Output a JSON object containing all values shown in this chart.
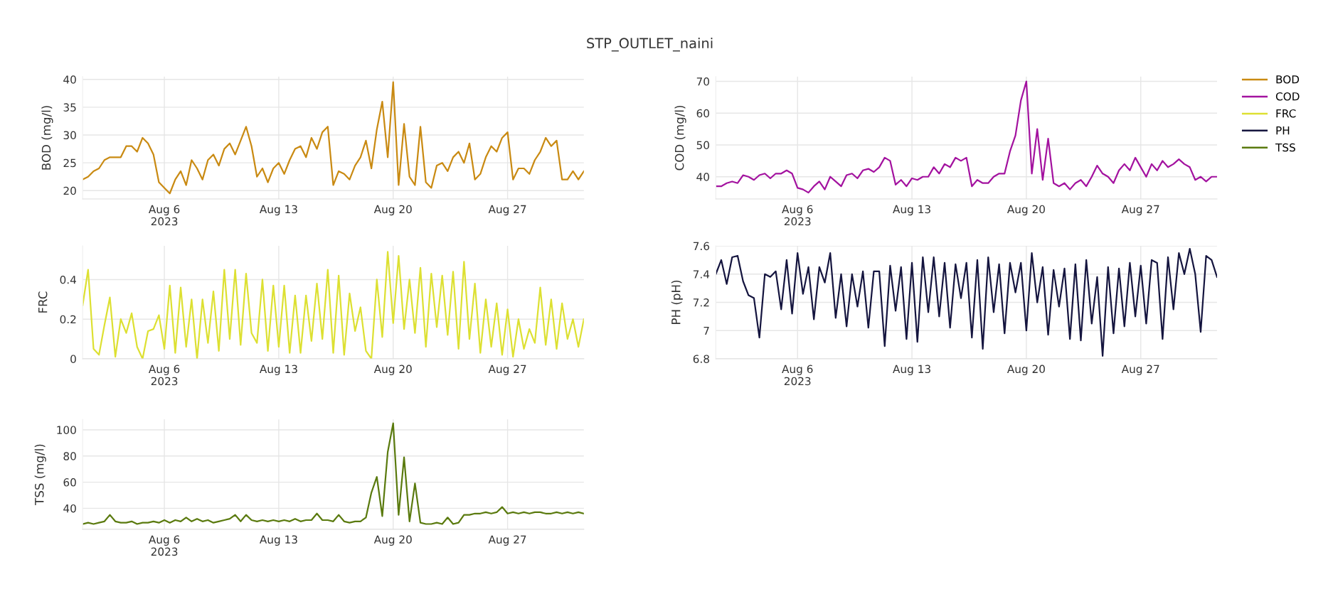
{
  "chart_data": [
    {
      "type": "other",
      "title": "STP_OUTLET_naini"
    },
    {
      "type": "line",
      "ylabel": "BOD (mg/l)",
      "grid": true,
      "legend": "right",
      "x": [
        "2023-08-01T00:00",
        "2023-08-01T08:00",
        "2023-08-01T16:00",
        "2023-08-02T00:00",
        "2023-08-02T08:00",
        "2023-08-02T16:00",
        "2023-08-03T00:00",
        "2023-08-03T08:00",
        "2023-08-03T16:00",
        "2023-08-04T00:00",
        "2023-08-04T08:00",
        "2023-08-04T16:00",
        "2023-08-05T00:00",
        "2023-08-05T08:00",
        "2023-08-05T16:00",
        "2023-08-06T00:00",
        "2023-08-06T08:00",
        "2023-08-06T16:00",
        "2023-08-07T00:00",
        "2023-08-07T08:00",
        "2023-08-07T16:00",
        "2023-08-08T00:00",
        "2023-08-08T08:00",
        "2023-08-08T16:00",
        "2023-08-09T00:00",
        "2023-08-09T08:00",
        "2023-08-09T16:00",
        "2023-08-10T00:00",
        "2023-08-10T08:00",
        "2023-08-10T16:00",
        "2023-08-11T00:00",
        "2023-08-11T08:00",
        "2023-08-11T16:00",
        "2023-08-12T00:00",
        "2023-08-12T08:00",
        "2023-08-12T16:00",
        "2023-08-13T00:00",
        "2023-08-13T08:00",
        "2023-08-13T16:00",
        "2023-08-14T00:00",
        "2023-08-14T08:00",
        "2023-08-14T16:00",
        "2023-08-15T00:00",
        "2023-08-15T08:00",
        "2023-08-15T16:00",
        "2023-08-16T00:00",
        "2023-08-16T08:00",
        "2023-08-16T16:00",
        "2023-08-17T00:00",
        "2023-08-17T08:00",
        "2023-08-17T16:00",
        "2023-08-18T00:00",
        "2023-08-18T08:00",
        "2023-08-18T16:00",
        "2023-08-19T00:00",
        "2023-08-19T08:00",
        "2023-08-19T16:00",
        "2023-08-20T00:00",
        "2023-08-20T08:00",
        "2023-08-20T16:00",
        "2023-08-21T00:00",
        "2023-08-21T08:00",
        "2023-08-21T16:00",
        "2023-08-22T00:00",
        "2023-08-22T08:00",
        "2023-08-22T16:00",
        "2023-08-23T00:00",
        "2023-08-23T08:00",
        "2023-08-23T16:00",
        "2023-08-24T00:00",
        "2023-08-24T08:00",
        "2023-08-24T16:00",
        "2023-08-25T00:00",
        "2023-08-25T08:00",
        "2023-08-25T16:00",
        "2023-08-26T00:00",
        "2023-08-26T08:00",
        "2023-08-26T16:00",
        "2023-08-27T00:00",
        "2023-08-27T08:00",
        "2023-08-27T16:00",
        "2023-08-28T00:00",
        "2023-08-28T08:00",
        "2023-08-28T16:00",
        "2023-08-29T00:00",
        "2023-08-29T08:00",
        "2023-08-29T16:00",
        "2023-08-30T00:00",
        "2023-08-30T08:00",
        "2023-08-30T16:00",
        "2023-08-31T00:00",
        "2023-08-31T08:00",
        "2023-08-31T16:00"
      ],
      "xlim": [
        "2023-08-01T00:00",
        "2023-08-31T16:00"
      ],
      "xticks": [
        {
          "value": "2023-08-06",
          "label": "Aug 6\n2023"
        },
        {
          "value": "2023-08-13",
          "label": "Aug 13"
        },
        {
          "value": "2023-08-20",
          "label": "Aug 20"
        },
        {
          "value": "2023-08-27",
          "label": "Aug 27"
        }
      ],
      "ylim": [
        18.5,
        40.5
      ],
      "yticks": [
        20,
        25,
        30,
        35,
        40
      ],
      "series": [
        {
          "name": "BOD",
          "color": "#c98a12",
          "values": [
            22,
            22.5,
            23.5,
            24,
            25.5,
            26,
            26,
            26,
            28,
            28,
            27,
            29.5,
            28.5,
            26.5,
            21.5,
            20.5,
            19.5,
            22,
            23.5,
            21,
            25.5,
            24,
            22,
            25.5,
            26.5,
            24.5,
            27.5,
            28.5,
            26.5,
            29,
            31.5,
            28,
            22.5,
            24,
            21.5,
            24,
            25,
            23,
            25.5,
            27.5,
            28,
            26,
            29.5,
            27.5,
            30.5,
            31.5,
            21,
            23.5,
            23,
            22,
            24.5,
            26,
            29,
            24,
            31,
            36,
            26,
            39.5,
            21,
            32,
            22.5,
            21,
            31.5,
            21.5,
            20.5,
            24.5,
            25,
            23.5,
            26,
            27,
            25,
            28.5,
            22,
            23,
            26,
            28,
            27,
            29.5,
            30.5,
            22,
            24,
            24,
            23,
            25.5,
            27,
            29.5,
            28,
            29,
            22,
            22,
            23.5,
            22,
            23.5
          ]
        }
      ]
    },
    {
      "type": "line",
      "ylabel": "COD (mg/l)",
      "grid": true,
      "legend": "right",
      "x": [
        "2023-08-01T00:00",
        "2023-08-01T08:00",
        "2023-08-01T16:00",
        "2023-08-02T00:00",
        "2023-08-02T08:00",
        "2023-08-02T16:00",
        "2023-08-03T00:00",
        "2023-08-03T08:00",
        "2023-08-03T16:00",
        "2023-08-04T00:00",
        "2023-08-04T08:00",
        "2023-08-04T16:00",
        "2023-08-05T00:00",
        "2023-08-05T08:00",
        "2023-08-05T16:00",
        "2023-08-06T00:00",
        "2023-08-06T08:00",
        "2023-08-06T16:00",
        "2023-08-07T00:00",
        "2023-08-07T08:00",
        "2023-08-07T16:00",
        "2023-08-08T00:00",
        "2023-08-08T08:00",
        "2023-08-08T16:00",
        "2023-08-09T00:00",
        "2023-08-09T08:00",
        "2023-08-09T16:00",
        "2023-08-10T00:00",
        "2023-08-10T08:00",
        "2023-08-10T16:00",
        "2023-08-11T00:00",
        "2023-08-11T08:00",
        "2023-08-11T16:00",
        "2023-08-12T00:00",
        "2023-08-12T08:00",
        "2023-08-12T16:00",
        "2023-08-13T00:00",
        "2023-08-13T08:00",
        "2023-08-13T16:00",
        "2023-08-14T00:00",
        "2023-08-14T08:00",
        "2023-08-14T16:00",
        "2023-08-15T00:00",
        "2023-08-15T08:00",
        "2023-08-15T16:00",
        "2023-08-16T00:00",
        "2023-08-16T08:00",
        "2023-08-16T16:00",
        "2023-08-17T00:00",
        "2023-08-17T08:00",
        "2023-08-17T16:00",
        "2023-08-18T00:00",
        "2023-08-18T08:00",
        "2023-08-18T16:00",
        "2023-08-19T00:00",
        "2023-08-19T08:00",
        "2023-08-19T16:00",
        "2023-08-20T00:00",
        "2023-08-20T08:00",
        "2023-08-20T16:00",
        "2023-08-21T00:00",
        "2023-08-21T08:00",
        "2023-08-21T16:00",
        "2023-08-22T00:00",
        "2023-08-22T08:00",
        "2023-08-22T16:00",
        "2023-08-23T00:00",
        "2023-08-23T08:00",
        "2023-08-23T16:00",
        "2023-08-24T00:00",
        "2023-08-24T08:00",
        "2023-08-24T16:00",
        "2023-08-25T00:00",
        "2023-08-25T08:00",
        "2023-08-25T16:00",
        "2023-08-26T00:00",
        "2023-08-26T08:00",
        "2023-08-26T16:00",
        "2023-08-27T00:00",
        "2023-08-27T08:00",
        "2023-08-27T16:00",
        "2023-08-28T00:00",
        "2023-08-28T08:00",
        "2023-08-28T16:00",
        "2023-08-29T00:00",
        "2023-08-29T08:00",
        "2023-08-29T16:00",
        "2023-08-30T00:00",
        "2023-08-30T08:00",
        "2023-08-30T16:00",
        "2023-08-31T00:00",
        "2023-08-31T08:00",
        "2023-08-31T16:00"
      ],
      "xlim": [
        "2023-08-01T00:00",
        "2023-08-31T16:00"
      ],
      "xticks": [
        {
          "value": "2023-08-06",
          "label": "Aug 6\n2023"
        },
        {
          "value": "2023-08-13",
          "label": "Aug 13"
        },
        {
          "value": "2023-08-20",
          "label": "Aug 20"
        },
        {
          "value": "2023-08-27",
          "label": "Aug 27"
        }
      ],
      "ylim": [
        33,
        71.5
      ],
      "yticks": [
        40,
        50,
        60,
        70
      ],
      "series": [
        {
          "name": "COD",
          "color": "#a3129f",
          "values": [
            37,
            37,
            38,
            38.5,
            38,
            40.5,
            40,
            39,
            40.5,
            41,
            39.5,
            41,
            41,
            42,
            41,
            36.5,
            36,
            35,
            37,
            38.5,
            36,
            40,
            38.5,
            37,
            40.5,
            41,
            39.5,
            42,
            42.5,
            41.5,
            43,
            46,
            45,
            37.5,
            39,
            37,
            39.5,
            39,
            40,
            40,
            43,
            41,
            44,
            43,
            46,
            45,
            46,
            37,
            39,
            38,
            38,
            40,
            41,
            41,
            48,
            53,
            64,
            70,
            41,
            55,
            39,
            52,
            38,
            37,
            38,
            36,
            38,
            39,
            37,
            40,
            43.5,
            41,
            40,
            38,
            42,
            44,
            42,
            46,
            43,
            40,
            44,
            42,
            45,
            43,
            44,
            45.5,
            44,
            43,
            39,
            40,
            38.5,
            40,
            40
          ]
        }
      ]
    },
    {
      "type": "line",
      "ylabel": "FRC",
      "grid": true,
      "legend": "right",
      "x": [
        "2023-08-01T00:00",
        "2023-08-01T08:00",
        "2023-08-01T16:00",
        "2023-08-02T00:00",
        "2023-08-02T08:00",
        "2023-08-02T16:00",
        "2023-08-03T00:00",
        "2023-08-03T08:00",
        "2023-08-03T16:00",
        "2023-08-04T00:00",
        "2023-08-04T08:00",
        "2023-08-04T16:00",
        "2023-08-05T00:00",
        "2023-08-05T08:00",
        "2023-08-05T16:00",
        "2023-08-06T00:00",
        "2023-08-06T08:00",
        "2023-08-06T16:00",
        "2023-08-07T00:00",
        "2023-08-07T08:00",
        "2023-08-07T16:00",
        "2023-08-08T00:00",
        "2023-08-08T08:00",
        "2023-08-08T16:00",
        "2023-08-09T00:00",
        "2023-08-09T08:00",
        "2023-08-09T16:00",
        "2023-08-10T00:00",
        "2023-08-10T08:00",
        "2023-08-10T16:00",
        "2023-08-11T00:00",
        "2023-08-11T08:00",
        "2023-08-11T16:00",
        "2023-08-12T00:00",
        "2023-08-12T08:00",
        "2023-08-12T16:00",
        "2023-08-13T00:00",
        "2023-08-13T08:00",
        "2023-08-13T16:00",
        "2023-08-14T00:00",
        "2023-08-14T08:00",
        "2023-08-14T16:00",
        "2023-08-15T00:00",
        "2023-08-15T08:00",
        "2023-08-15T16:00",
        "2023-08-16T00:00",
        "2023-08-16T08:00",
        "2023-08-16T16:00",
        "2023-08-17T00:00",
        "2023-08-17T08:00",
        "2023-08-17T16:00",
        "2023-08-18T00:00",
        "2023-08-18T08:00",
        "2023-08-18T16:00",
        "2023-08-19T00:00",
        "2023-08-19T08:00",
        "2023-08-19T16:00",
        "2023-08-20T00:00",
        "2023-08-20T08:00",
        "2023-08-20T16:00",
        "2023-08-21T00:00",
        "2023-08-21T08:00",
        "2023-08-21T16:00",
        "2023-08-22T00:00",
        "2023-08-22T08:00",
        "2023-08-22T16:00",
        "2023-08-23T00:00",
        "2023-08-23T08:00",
        "2023-08-23T16:00",
        "2023-08-24T00:00",
        "2023-08-24T08:00",
        "2023-08-24T16:00",
        "2023-08-25T00:00",
        "2023-08-25T08:00",
        "2023-08-25T16:00",
        "2023-08-26T00:00",
        "2023-08-26T08:00",
        "2023-08-26T16:00",
        "2023-08-27T00:00",
        "2023-08-27T08:00",
        "2023-08-27T16:00",
        "2023-08-28T00:00",
        "2023-08-28T08:00",
        "2023-08-28T16:00",
        "2023-08-29T00:00",
        "2023-08-29T08:00",
        "2023-08-29T16:00",
        "2023-08-30T00:00",
        "2023-08-30T08:00",
        "2023-08-30T16:00",
        "2023-08-31T00:00",
        "2023-08-31T08:00",
        "2023-08-31T16:00"
      ],
      "xlim": [
        "2023-08-01T00:00",
        "2023-08-31T16:00"
      ],
      "xticks": [
        {
          "value": "2023-08-06",
          "label": "Aug 6\n2023"
        },
        {
          "value": "2023-08-13",
          "label": "Aug 13"
        },
        {
          "value": "2023-08-20",
          "label": "Aug 20"
        },
        {
          "value": "2023-08-27",
          "label": "Aug 27"
        }
      ],
      "ylim": [
        0,
        0.57
      ],
      "yticks": [
        0,
        0.2,
        0.4
      ],
      "series": [
        {
          "name": "FRC",
          "color": "#dde032",
          "values": [
            0.27,
            0.45,
            0.05,
            0.02,
            0.17,
            0.31,
            0.01,
            0.2,
            0.13,
            0.23,
            0.06,
            0,
            0.14,
            0.15,
            0.22,
            0.05,
            0.37,
            0.03,
            0.36,
            0.06,
            0.3,
            0,
            0.3,
            0.08,
            0.34,
            0.04,
            0.45,
            0.1,
            0.45,
            0.07,
            0.43,
            0.13,
            0.08,
            0.4,
            0.04,
            0.37,
            0.06,
            0.37,
            0.03,
            0.32,
            0.03,
            0.32,
            0.09,
            0.38,
            0.1,
            0.45,
            0.03,
            0.42,
            0.02,
            0.33,
            0.14,
            0.26,
            0.04,
            0,
            0.4,
            0.11,
            0.54,
            0.18,
            0.52,
            0.15,
            0.4,
            0.13,
            0.46,
            0.06,
            0.43,
            0.16,
            0.42,
            0.12,
            0.44,
            0.05,
            0.49,
            0.1,
            0.38,
            0.03,
            0.3,
            0.06,
            0.28,
            0.02,
            0.25,
            0.01,
            0.2,
            0.05,
            0.15,
            0.08,
            0.36,
            0.07,
            0.3,
            0.05,
            0.28,
            0.1,
            0.2,
            0.06,
            0.2
          ]
        }
      ]
    },
    {
      "type": "line",
      "ylabel": "PH (pH)",
      "grid": true,
      "legend": "right",
      "x": [
        "2023-08-01T00:00",
        "2023-08-01T08:00",
        "2023-08-01T16:00",
        "2023-08-02T00:00",
        "2023-08-02T08:00",
        "2023-08-02T16:00",
        "2023-08-03T00:00",
        "2023-08-03T08:00",
        "2023-08-03T16:00",
        "2023-08-04T00:00",
        "2023-08-04T08:00",
        "2023-08-04T16:00",
        "2023-08-05T00:00",
        "2023-08-05T08:00",
        "2023-08-05T16:00",
        "2023-08-06T00:00",
        "2023-08-06T08:00",
        "2023-08-06T16:00",
        "2023-08-07T00:00",
        "2023-08-07T08:00",
        "2023-08-07T16:00",
        "2023-08-08T00:00",
        "2023-08-08T08:00",
        "2023-08-08T16:00",
        "2023-08-09T00:00",
        "2023-08-09T08:00",
        "2023-08-09T16:00",
        "2023-08-10T00:00",
        "2023-08-10T08:00",
        "2023-08-10T16:00",
        "2023-08-11T00:00",
        "2023-08-11T08:00",
        "2023-08-11T16:00",
        "2023-08-12T00:00",
        "2023-08-12T08:00",
        "2023-08-12T16:00",
        "2023-08-13T00:00",
        "2023-08-13T08:00",
        "2023-08-13T16:00",
        "2023-08-14T00:00",
        "2023-08-14T08:00",
        "2023-08-14T16:00",
        "2023-08-15T00:00",
        "2023-08-15T08:00",
        "2023-08-15T16:00",
        "2023-08-16T00:00",
        "2023-08-16T08:00",
        "2023-08-16T16:00",
        "2023-08-17T00:00",
        "2023-08-17T08:00",
        "2023-08-17T16:00",
        "2023-08-18T00:00",
        "2023-08-18T08:00",
        "2023-08-18T16:00",
        "2023-08-19T00:00",
        "2023-08-19T08:00",
        "2023-08-19T16:00",
        "2023-08-20T00:00",
        "2023-08-20T08:00",
        "2023-08-20T16:00",
        "2023-08-21T00:00",
        "2023-08-21T08:00",
        "2023-08-21T16:00",
        "2023-08-22T00:00",
        "2023-08-22T08:00",
        "2023-08-22T16:00",
        "2023-08-23T00:00",
        "2023-08-23T08:00",
        "2023-08-23T16:00",
        "2023-08-24T00:00",
        "2023-08-24T08:00",
        "2023-08-24T16:00",
        "2023-08-25T00:00",
        "2023-08-25T08:00",
        "2023-08-25T16:00",
        "2023-08-26T00:00",
        "2023-08-26T08:00",
        "2023-08-26T16:00",
        "2023-08-27T00:00",
        "2023-08-27T08:00",
        "2023-08-27T16:00",
        "2023-08-28T00:00",
        "2023-08-28T08:00",
        "2023-08-28T16:00",
        "2023-08-29T00:00",
        "2023-08-29T08:00",
        "2023-08-29T16:00",
        "2023-08-30T00:00",
        "2023-08-30T08:00",
        "2023-08-30T16:00",
        "2023-08-31T00:00",
        "2023-08-31T08:00",
        "2023-08-31T16:00"
      ],
      "xlim": [
        "2023-08-01T00:00",
        "2023-08-31T16:00"
      ],
      "xticks": [
        {
          "value": "2023-08-06",
          "label": "Aug 6\n2023"
        },
        {
          "value": "2023-08-13",
          "label": "Aug 13"
        },
        {
          "value": "2023-08-20",
          "label": "Aug 20"
        },
        {
          "value": "2023-08-27",
          "label": "Aug 27"
        }
      ],
      "ylim": [
        6.8,
        7.6
      ],
      "yticks": [
        6.8,
        7,
        7.2,
        7.4,
        7.6
      ],
      "series": [
        {
          "name": "PH",
          "color": "#15153f",
          "values": [
            7.4,
            7.5,
            7.33,
            7.52,
            7.53,
            7.35,
            7.25,
            7.23,
            6.95,
            7.4,
            7.38,
            7.42,
            7.15,
            7.5,
            7.12,
            7.55,
            7.26,
            7.45,
            7.08,
            7.45,
            7.34,
            7.55,
            7.09,
            7.4,
            7.03,
            7.4,
            7.17,
            7.42,
            7.02,
            7.42,
            7.42,
            6.89,
            7.46,
            7.14,
            7.45,
            6.94,
            7.48,
            6.92,
            7.52,
            7.13,
            7.52,
            7.1,
            7.48,
            7.02,
            7.47,
            7.23,
            7.48,
            6.95,
            7.5,
            6.87,
            7.52,
            7.13,
            7.47,
            6.98,
            7.48,
            7.27,
            7.48,
            7.0,
            7.55,
            7.2,
            7.45,
            6.97,
            7.43,
            7.17,
            7.44,
            6.94,
            7.47,
            6.93,
            7.5,
            7.05,
            7.38,
            6.82,
            7.45,
            6.98,
            7.44,
            7.03,
            7.48,
            7.1,
            7.46,
            7.05,
            7.5,
            7.48,
            6.94,
            7.52,
            7.15,
            7.55,
            7.4,
            7.58,
            7.4,
            6.99,
            7.53,
            7.5,
            7.38
          ]
        }
      ]
    },
    {
      "type": "line",
      "ylabel": "TSS (mg/l)",
      "grid": true,
      "legend": "right",
      "x": [
        "2023-08-01T00:00",
        "2023-08-01T08:00",
        "2023-08-01T16:00",
        "2023-08-02T00:00",
        "2023-08-02T08:00",
        "2023-08-02T16:00",
        "2023-08-03T00:00",
        "2023-08-03T08:00",
        "2023-08-03T16:00",
        "2023-08-04T00:00",
        "2023-08-04T08:00",
        "2023-08-04T16:00",
        "2023-08-05T00:00",
        "2023-08-05T08:00",
        "2023-08-05T16:00",
        "2023-08-06T00:00",
        "2023-08-06T08:00",
        "2023-08-06T16:00",
        "2023-08-07T00:00",
        "2023-08-07T08:00",
        "2023-08-07T16:00",
        "2023-08-08T00:00",
        "2023-08-08T08:00",
        "2023-08-08T16:00",
        "2023-08-09T00:00",
        "2023-08-09T08:00",
        "2023-08-09T16:00",
        "2023-08-10T00:00",
        "2023-08-10T08:00",
        "2023-08-10T16:00",
        "2023-08-11T00:00",
        "2023-08-11T08:00",
        "2023-08-11T16:00",
        "2023-08-12T00:00",
        "2023-08-12T08:00",
        "2023-08-12T16:00",
        "2023-08-13T00:00",
        "2023-08-13T08:00",
        "2023-08-13T16:00",
        "2023-08-14T00:00",
        "2023-08-14T08:00",
        "2023-08-14T16:00",
        "2023-08-15T00:00",
        "2023-08-15T08:00",
        "2023-08-15T16:00",
        "2023-08-16T00:00",
        "2023-08-16T08:00",
        "2023-08-16T16:00",
        "2023-08-17T00:00",
        "2023-08-17T08:00",
        "2023-08-17T16:00",
        "2023-08-18T00:00",
        "2023-08-18T08:00",
        "2023-08-18T16:00",
        "2023-08-19T00:00",
        "2023-08-19T08:00",
        "2023-08-19T16:00",
        "2023-08-20T00:00",
        "2023-08-20T08:00",
        "2023-08-20T16:00",
        "2023-08-21T00:00",
        "2023-08-21T08:00",
        "2023-08-21T16:00",
        "2023-08-22T00:00",
        "2023-08-22T08:00",
        "2023-08-22T16:00",
        "2023-08-23T00:00",
        "2023-08-23T08:00",
        "2023-08-23T16:00",
        "2023-08-24T00:00",
        "2023-08-24T08:00",
        "2023-08-24T16:00",
        "2023-08-25T00:00",
        "2023-08-25T08:00",
        "2023-08-25T16:00",
        "2023-08-26T00:00",
        "2023-08-26T08:00",
        "2023-08-26T16:00",
        "2023-08-27T00:00",
        "2023-08-27T08:00",
        "2023-08-27T16:00",
        "2023-08-28T00:00",
        "2023-08-28T08:00",
        "2023-08-28T16:00",
        "2023-08-29T00:00",
        "2023-08-29T08:00",
        "2023-08-29T16:00",
        "2023-08-30T00:00",
        "2023-08-30T08:00",
        "2023-08-30T16:00",
        "2023-08-31T00:00",
        "2023-08-31T08:00",
        "2023-08-31T16:00"
      ],
      "xlim": [
        "2023-08-01T00:00",
        "2023-08-31T16:00"
      ],
      "xticks": [
        {
          "value": "2023-08-06",
          "label": "Aug 6\n2023"
        },
        {
          "value": "2023-08-13",
          "label": "Aug 13"
        },
        {
          "value": "2023-08-20",
          "label": "Aug 20"
        },
        {
          "value": "2023-08-27",
          "label": "Aug 27"
        }
      ],
      "ylim": [
        24,
        108
      ],
      "yticks": [
        40,
        60,
        80,
        100
      ],
      "series": [
        {
          "name": "TSS",
          "color": "#5a7a0e",
          "values": [
            28,
            29,
            28,
            29,
            30,
            35,
            30,
            29,
            29,
            30,
            28,
            29,
            29,
            30,
            29,
            31,
            29,
            31,
            30,
            33,
            30,
            32,
            30,
            31,
            29,
            30,
            31,
            32,
            35,
            30,
            35,
            31,
            30,
            31,
            30,
            31,
            30,
            31,
            30,
            32,
            30,
            31,
            31,
            36,
            31,
            31,
            30,
            35,
            30,
            29,
            30,
            30,
            33,
            52,
            64,
            34,
            83,
            105,
            35,
            79,
            30,
            59,
            29,
            28,
            28,
            29,
            28,
            33,
            28,
            29,
            35,
            35,
            36,
            36,
            37,
            36,
            37,
            41,
            36,
            37,
            36,
            37,
            36,
            37,
            37,
            36,
            36,
            37,
            36,
            37,
            36,
            37,
            36
          ]
        }
      ]
    }
  ]
}
